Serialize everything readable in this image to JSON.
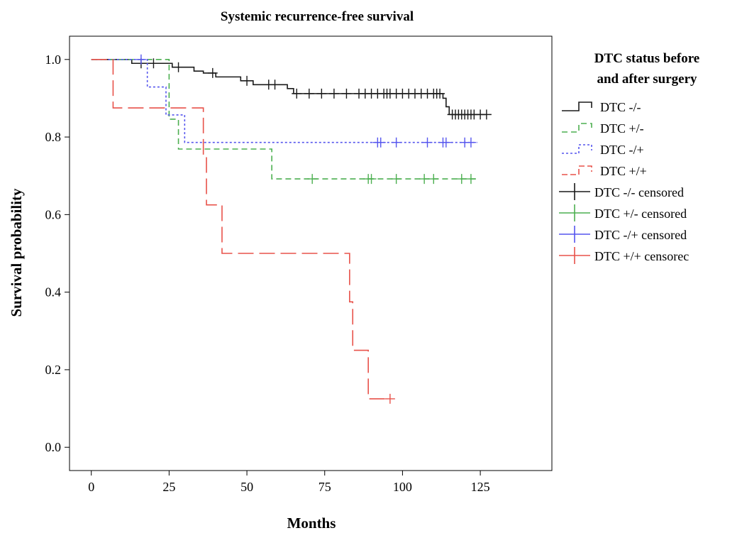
{
  "chart_data": {
    "type": "line",
    "subtype": "kaplan-meier",
    "title": "Systemic recurrence-free survival",
    "xlabel": "Months",
    "ylabel": "Survival probability",
    "xlim": [
      -7,
      148
    ],
    "ylim": [
      -0.06,
      1.06
    ],
    "xticks": [
      0,
      25,
      50,
      75,
      100,
      125
    ],
    "yticks": [
      0.0,
      0.2,
      0.4,
      0.6,
      0.8,
      1.0
    ],
    "ytick_labels": [
      "0.0",
      "0.2",
      "0.4",
      "0.6",
      "0.8",
      "1.0"
    ],
    "grid": false,
    "legend": {
      "title": "DTC status before and after surgery",
      "title_lines": [
        "DTC status before",
        "and after surgery"
      ],
      "placement": "right",
      "entries": [
        "DTC -/-",
        "DTC +/-",
        "DTC -/+",
        "DTC +/+",
        "DTC -/- censored",
        "DTC +/- censored",
        "DTC -/+ censored",
        "DTC +/+ censorec"
      ]
    },
    "series": [
      {
        "name": "DTC -/-",
        "color": "#1a1a1a",
        "dash": "solid",
        "steps": [
          [
            0,
            1.0
          ],
          [
            13,
            0.99
          ],
          [
            26,
            0.98
          ],
          [
            33,
            0.97
          ],
          [
            36,
            0.965
          ],
          [
            40,
            0.955
          ],
          [
            48,
            0.945
          ],
          [
            52,
            0.935
          ],
          [
            63,
            0.925
          ],
          [
            65,
            0.912
          ],
          [
            113,
            0.9
          ],
          [
            114,
            0.878
          ],
          [
            115,
            0.858
          ],
          [
            127,
            0.858
          ]
        ],
        "censored": [
          [
            16,
            0.99
          ],
          [
            20,
            0.99
          ],
          [
            28,
            0.98
          ],
          [
            39,
            0.965
          ],
          [
            50,
            0.945
          ],
          [
            57,
            0.935
          ],
          [
            59,
            0.935
          ],
          [
            66,
            0.912
          ],
          [
            70,
            0.912
          ],
          [
            74,
            0.912
          ],
          [
            78,
            0.912
          ],
          [
            82,
            0.912
          ],
          [
            86,
            0.912
          ],
          [
            88,
            0.912
          ],
          [
            90,
            0.912
          ],
          [
            92,
            0.912
          ],
          [
            94,
            0.912
          ],
          [
            95,
            0.912
          ],
          [
            96,
            0.912
          ],
          [
            98,
            0.912
          ],
          [
            100,
            0.912
          ],
          [
            102,
            0.912
          ],
          [
            104,
            0.912
          ],
          [
            106,
            0.912
          ],
          [
            108,
            0.912
          ],
          [
            110,
            0.912
          ],
          [
            111,
            0.912
          ],
          [
            112,
            0.912
          ],
          [
            116,
            0.858
          ],
          [
            117,
            0.858
          ],
          [
            118,
            0.858
          ],
          [
            119,
            0.858
          ],
          [
            120,
            0.858
          ],
          [
            121,
            0.858
          ],
          [
            122,
            0.858
          ],
          [
            123,
            0.858
          ],
          [
            125,
            0.858
          ],
          [
            127,
            0.858
          ]
        ]
      },
      {
        "name": "DTC +/-",
        "color": "#4caf50",
        "dash": "8,5",
        "steps": [
          [
            0,
            1.0
          ],
          [
            25,
            0.846
          ],
          [
            28,
            0.769
          ],
          [
            58,
            0.692
          ],
          [
            124,
            0.692
          ]
        ],
        "censored": [
          [
            71,
            0.692
          ],
          [
            89,
            0.692
          ],
          [
            90,
            0.692
          ],
          [
            98,
            0.692
          ],
          [
            107,
            0.692
          ],
          [
            110,
            0.692
          ],
          [
            119,
            0.692
          ],
          [
            122,
            0.692
          ]
        ]
      },
      {
        "name": "DTC -/+",
        "color": "#5555ee",
        "dash": "3,3",
        "steps": [
          [
            0,
            1.0
          ],
          [
            18,
            0.929
          ],
          [
            24,
            0.857
          ],
          [
            30,
            0.786
          ],
          [
            124,
            0.786
          ]
        ],
        "censored": [
          [
            16,
            1.0
          ],
          [
            92,
            0.786
          ],
          [
            93,
            0.786
          ],
          [
            98,
            0.786
          ],
          [
            108,
            0.786
          ],
          [
            113,
            0.786
          ],
          [
            114,
            0.786
          ],
          [
            120,
            0.786
          ],
          [
            122,
            0.786
          ]
        ]
      },
      {
        "name": "DTC +/+",
        "color": "#e8524a",
        "dash": "22,8",
        "steps": [
          [
            0,
            1.0
          ],
          [
            7,
            0.875
          ],
          [
            36,
            0.75
          ],
          [
            37,
            0.625
          ],
          [
            42,
            0.5
          ],
          [
            83,
            0.375
          ],
          [
            84,
            0.25
          ],
          [
            89,
            0.125
          ],
          [
            96,
            0.125
          ]
        ],
        "censored": [
          [
            96,
            0.125
          ]
        ]
      }
    ]
  }
}
